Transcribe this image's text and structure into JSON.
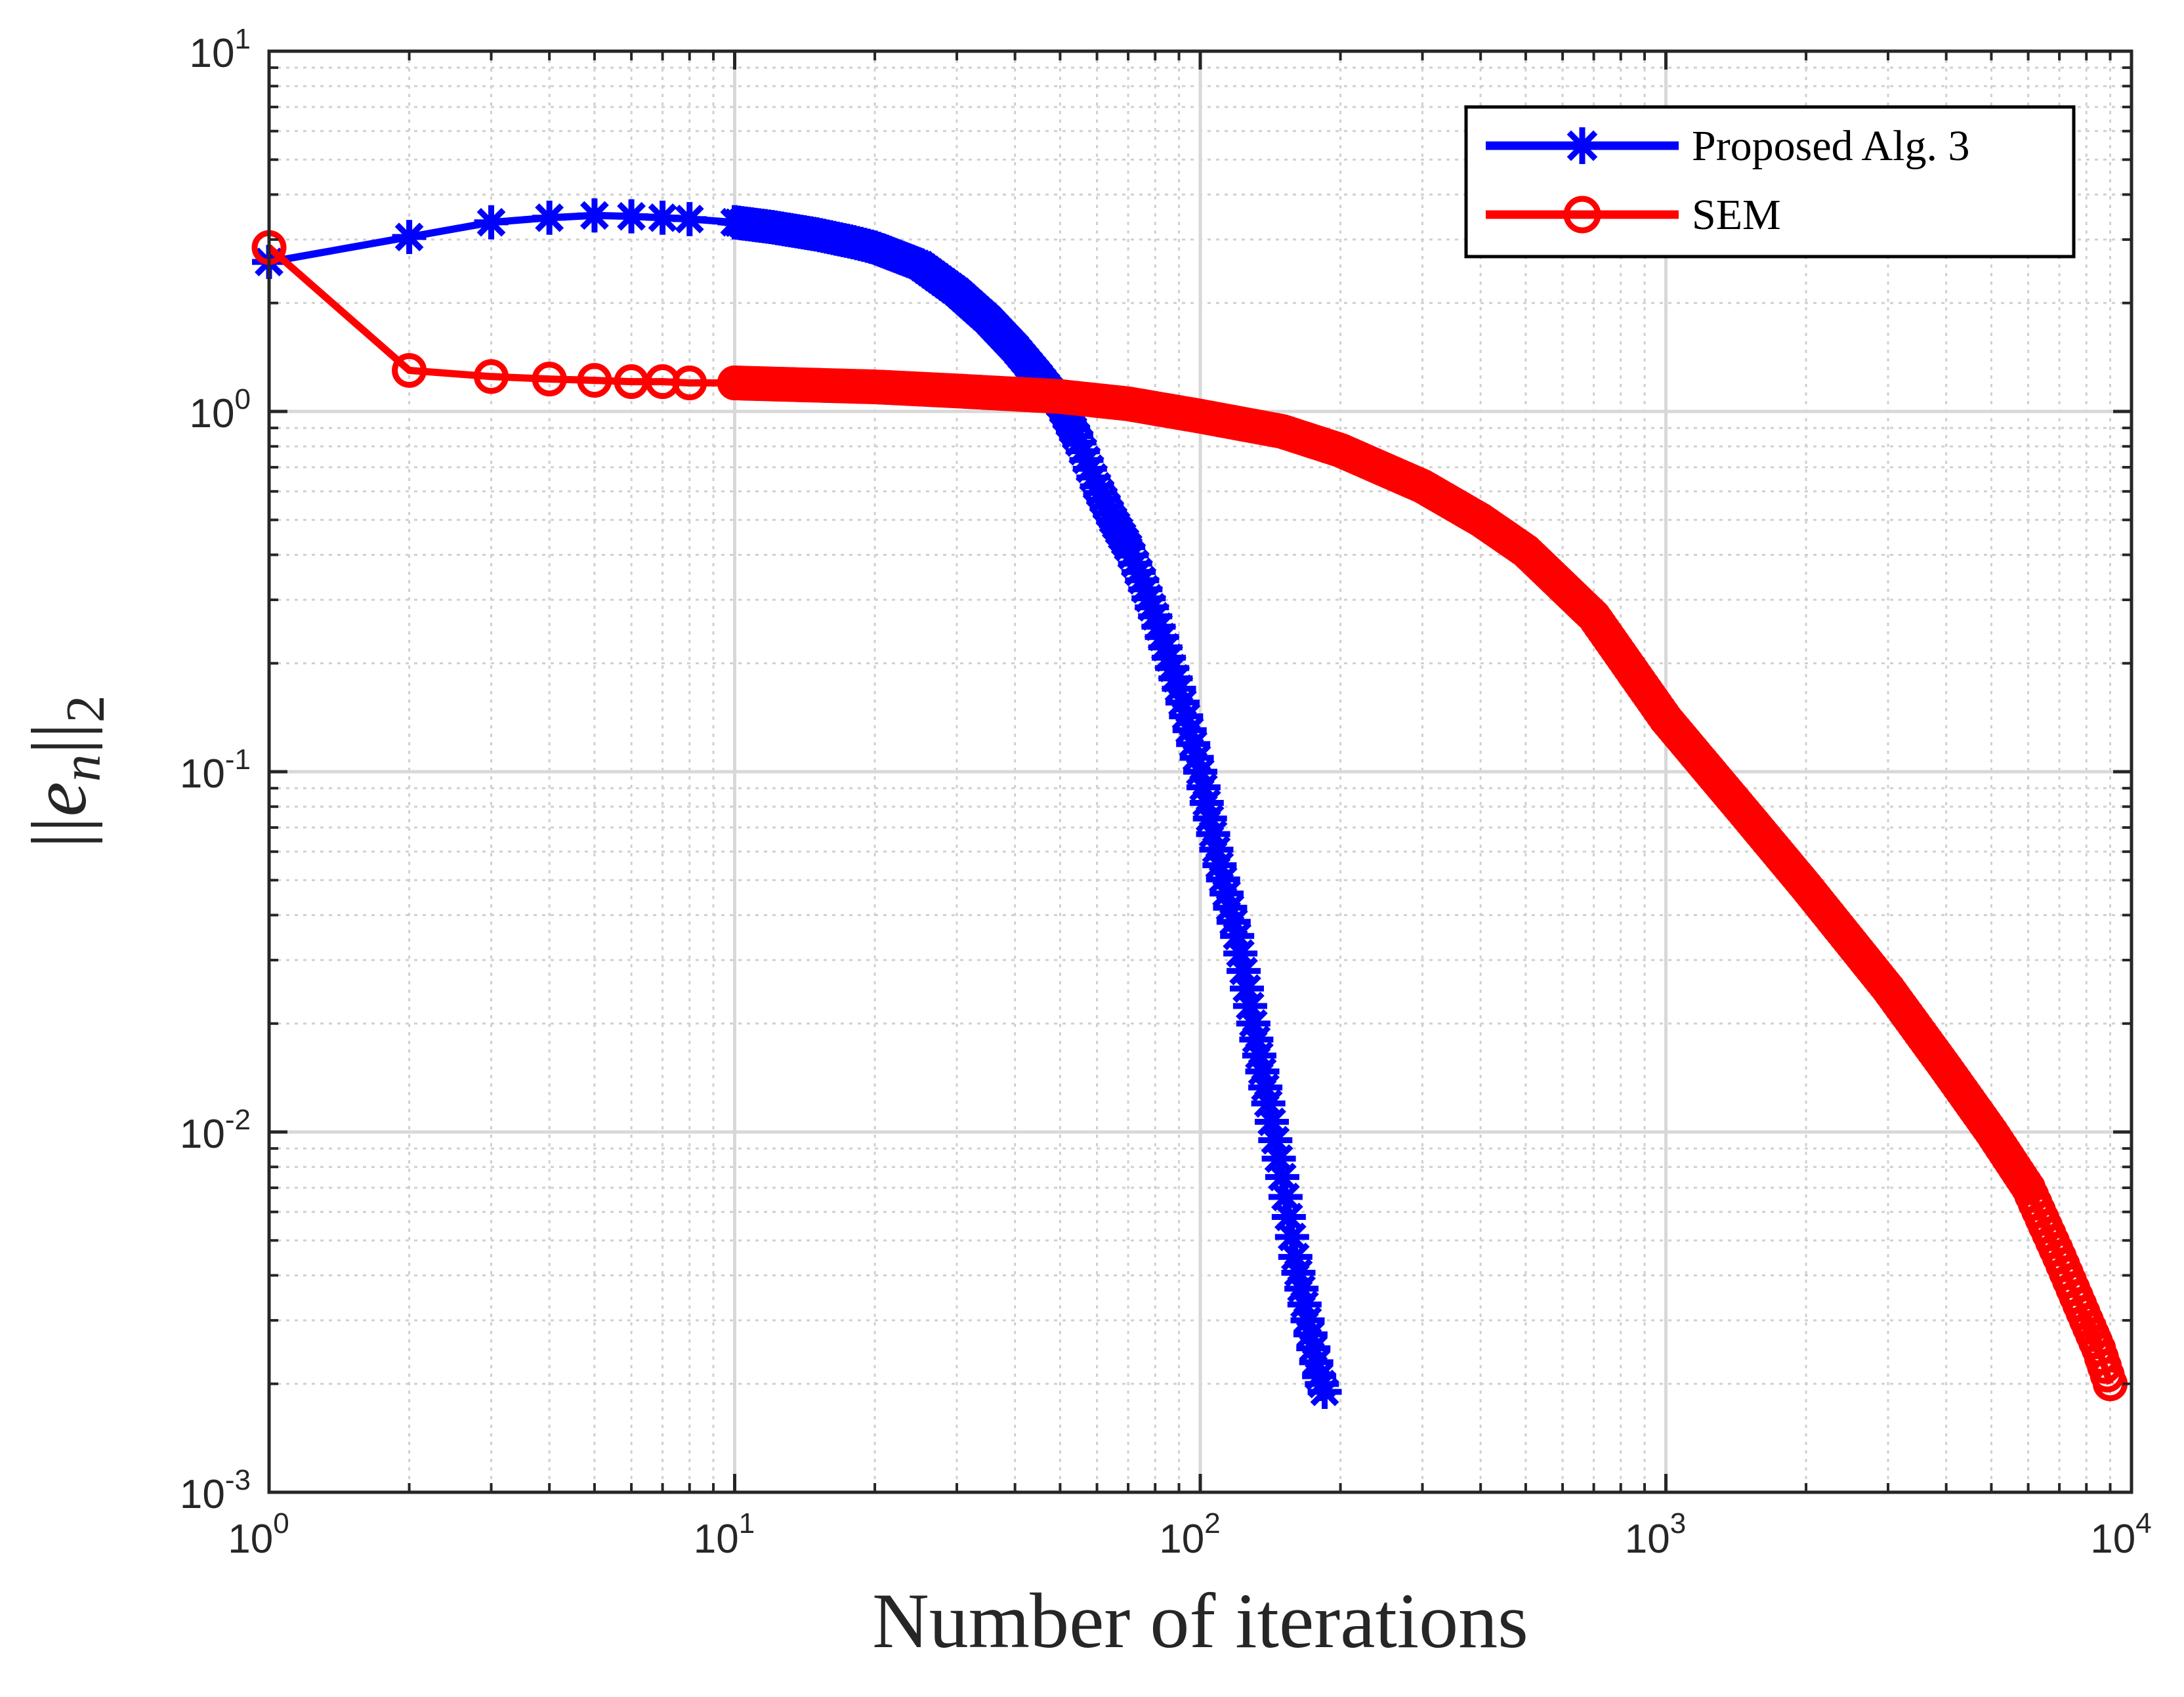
{
  "chart_data": {
    "type": "line",
    "title": "",
    "xlabel": "Number of iterations",
    "ylabel": "||e_n||_2",
    "ylabel_parts": {
      "bars_left": "||",
      "base": "e",
      "subscript": "n",
      "bars_right": "||",
      "outer_subscript": "2"
    },
    "xscale": "log",
    "yscale": "log",
    "xlim": [
      1,
      10000
    ],
    "ylim": [
      0.001,
      10
    ],
    "grid": true,
    "minor_grid": true,
    "legend_position": "top-right",
    "x_ticks": [
      {
        "value": 1,
        "base": "10",
        "exp": "0"
      },
      {
        "value": 10,
        "base": "10",
        "exp": "1"
      },
      {
        "value": 100,
        "base": "10",
        "exp": "2"
      },
      {
        "value": 1000,
        "base": "10",
        "exp": "3"
      },
      {
        "value": 10000,
        "base": "10",
        "exp": "4"
      }
    ],
    "y_ticks": [
      {
        "value": 0.001,
        "base": "10",
        "exp": "-3"
      },
      {
        "value": 0.01,
        "base": "10",
        "exp": "-2"
      },
      {
        "value": 0.1,
        "base": "10",
        "exp": "-1"
      },
      {
        "value": 1,
        "base": "10",
        "exp": "0"
      },
      {
        "value": 10,
        "base": "10",
        "exp": "1"
      }
    ],
    "series": [
      {
        "name": "Proposed Alg. 3",
        "color": "#0000ff",
        "marker": "asterisk",
        "points": [
          [
            1,
            2.6
          ],
          [
            2,
            3.05
          ],
          [
            3,
            3.35
          ],
          [
            4,
            3.45
          ],
          [
            5,
            3.5
          ],
          [
            6,
            3.48
          ],
          [
            7,
            3.45
          ],
          [
            8,
            3.42
          ],
          [
            10,
            3.35
          ],
          [
            12,
            3.25
          ],
          [
            15,
            3.1
          ],
          [
            18,
            2.95
          ],
          [
            20,
            2.85
          ],
          [
            25,
            2.55
          ],
          [
            30,
            2.15
          ],
          [
            35,
            1.8
          ],
          [
            40,
            1.5
          ],
          [
            45,
            1.25
          ],
          [
            50,
            1.05
          ],
          [
            55,
            0.82
          ],
          [
            60,
            0.62
          ],
          [
            65,
            0.5
          ],
          [
            70,
            0.42
          ],
          [
            75,
            0.34
          ],
          [
            80,
            0.27
          ],
          [
            90,
            0.17
          ],
          [
            100,
            0.1
          ],
          [
            110,
            0.055
          ],
          [
            120,
            0.035
          ],
          [
            130,
            0.02
          ],
          [
            140,
            0.012
          ],
          [
            150,
            0.0075
          ],
          [
            160,
            0.0045
          ],
          [
            170,
            0.003
          ],
          [
            180,
            0.0021
          ],
          [
            185,
            0.0019
          ]
        ]
      },
      {
        "name": "SEM",
        "color": "#ff0000",
        "marker": "circle",
        "points": [
          [
            1,
            2.85
          ],
          [
            2,
            1.3
          ],
          [
            3,
            1.25
          ],
          [
            4,
            1.23
          ],
          [
            5,
            1.22
          ],
          [
            6,
            1.21
          ],
          [
            7,
            1.21
          ],
          [
            8,
            1.2
          ],
          [
            10,
            1.2
          ],
          [
            20,
            1.17
          ],
          [
            30,
            1.14
          ],
          [
            50,
            1.1
          ],
          [
            70,
            1.05
          ],
          [
            100,
            0.97
          ],
          [
            150,
            0.88
          ],
          [
            200,
            0.78
          ],
          [
            300,
            0.62
          ],
          [
            400,
            0.5
          ],
          [
            500,
            0.41
          ],
          [
            700,
            0.27
          ],
          [
            1000,
            0.14
          ],
          [
            1500,
            0.075
          ],
          [
            2000,
            0.048
          ],
          [
            3000,
            0.025
          ],
          [
            4000,
            0.015
          ],
          [
            5000,
            0.01
          ],
          [
            6000,
            0.007
          ],
          [
            7000,
            0.0045
          ],
          [
            8000,
            0.003
          ],
          [
            8500,
            0.0025
          ],
          [
            9000,
            0.002
          ]
        ]
      }
    ]
  }
}
